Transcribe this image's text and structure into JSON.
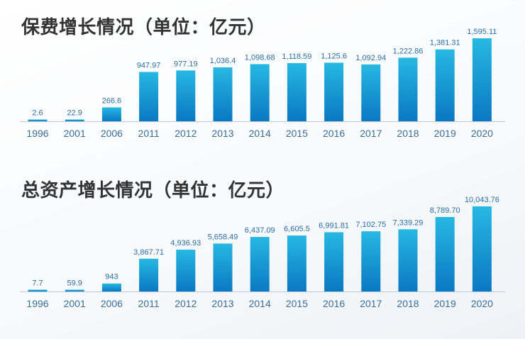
{
  "colors": {
    "bar_top": "#27b8e2",
    "bar_bottom": "#0a78c2",
    "baseline": "#b9cbdc",
    "title_text": "#333333",
    "value_text": "#2a6fa8",
    "axis_text": "#3a6e96"
  },
  "chart_data": [
    {
      "type": "bar",
      "title": "保费增长情况（单位：亿元）",
      "categories": [
        "1996",
        "2001",
        "2006",
        "2011",
        "2012",
        "2013",
        "2014",
        "2015",
        "2016",
        "2017",
        "2018",
        "2019",
        "2020"
      ],
      "values": [
        2.6,
        22.9,
        266.6,
        947.97,
        977.19,
        1036.4,
        1098.68,
        1118.59,
        1125.6,
        1092.94,
        1222.86,
        1381.31,
        1595.11
      ],
      "value_labels": [
        "2.6",
        "22.9",
        "266.6",
        "947.97",
        "977.19",
        "1,036.4",
        "1,098.68",
        "1,118.59",
        "1,125.6",
        "1,092.94",
        "1,222.86",
        "1,381.31",
        "1,595.11"
      ],
      "grid": false,
      "legend": "none"
    },
    {
      "type": "bar",
      "title": "总资产增长情况（单位：亿元）",
      "categories": [
        "1996",
        "2001",
        "2006",
        "2011",
        "2012",
        "2013",
        "2014",
        "2015",
        "2016",
        "2017",
        "2018",
        "2019",
        "2020"
      ],
      "values": [
        7.7,
        59.9,
        943,
        3867.71,
        4936.93,
        5658.49,
        6437.09,
        6605.5,
        6991.81,
        7102.75,
        7339.29,
        8789.7,
        10043.76
      ],
      "value_labels": [
        "7.7",
        "59.9",
        "943",
        "3,867.71",
        "4,936.93",
        "5,658.49",
        "6,437.09",
        "6,605.5",
        "6,991.81",
        "7,102.75",
        "7,339.29",
        "8,789.70",
        "10,043.76"
      ],
      "grid": false,
      "legend": "none"
    }
  ]
}
